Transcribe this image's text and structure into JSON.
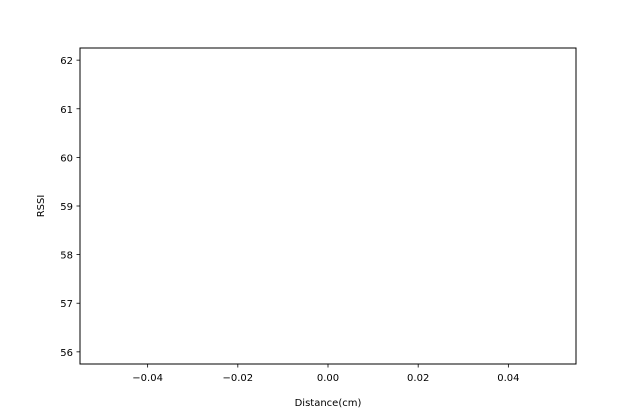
{
  "chart_data": {
    "type": "line",
    "title": "",
    "xlabel": "Distance(cm)",
    "ylabel": "RSSI",
    "xlim": [
      -0.055,
      0.055
    ],
    "ylim": [
      55.75,
      62.25
    ],
    "xticks": [
      -0.04,
      -0.02,
      0.0,
      0.02,
      0.04
    ],
    "xtick_labels": [
      "−0.04",
      "−0.02",
      "0.00",
      "0.02",
      "0.04"
    ],
    "yticks": [
      56,
      57,
      58,
      59,
      60,
      61,
      62
    ],
    "ytick_labels": [
      "56",
      "57",
      "58",
      "59",
      "60",
      "61",
      "62"
    ],
    "grid": false,
    "series": []
  }
}
